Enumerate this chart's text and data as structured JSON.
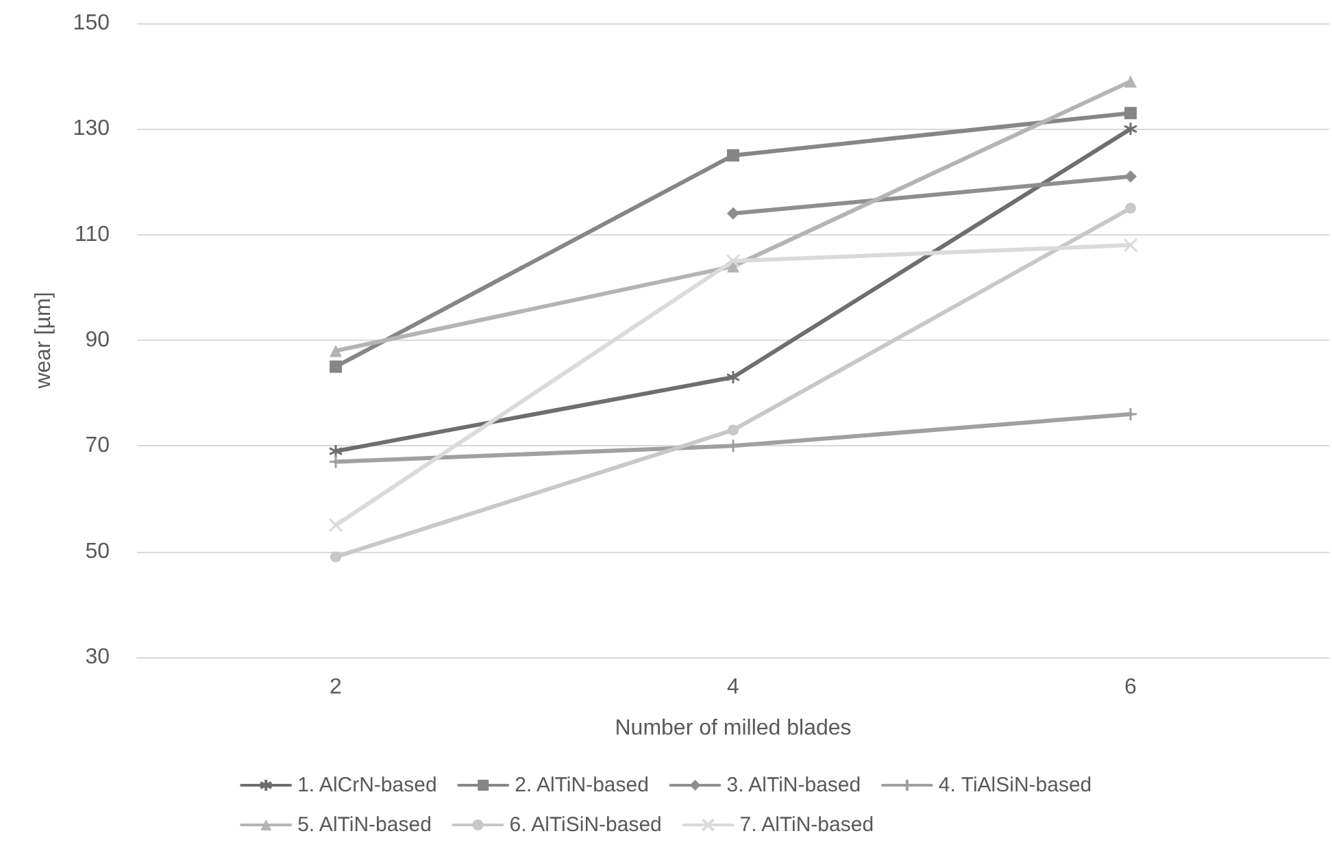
{
  "chart_data": {
    "type": "line",
    "xlabel": "Number of milled blades",
    "ylabel": "wear [µm]",
    "categories": [
      "2",
      "4",
      "6"
    ],
    "ylim": [
      30,
      150
    ],
    "yticks": [
      30,
      50,
      70,
      90,
      110,
      130,
      150
    ],
    "grid": "y",
    "legend": "bottom",
    "line_style": "solid",
    "series": [
      {
        "name": "1. AlCrN-based",
        "color": "#6e6e6e",
        "marker": "cross",
        "values": [
          69,
          83,
          130
        ]
      },
      {
        "name": "2. AlTiN-based",
        "color": "#868686",
        "marker": "square",
        "values": [
          85,
          125,
          133
        ]
      },
      {
        "name": "3. AlTiN-based",
        "color": "#8e8e8e",
        "marker": "diamond",
        "values": [
          null,
          114,
          121
        ]
      },
      {
        "name": "4. TiAlSiN-based",
        "color": "#a0a0a0",
        "marker": "cross",
        "values": [
          67,
          70,
          76
        ]
      },
      {
        "name": "5. AlTiN-based",
        "color": "#b4b4b4",
        "marker": "triangle",
        "values": [
          88,
          104,
          139
        ]
      },
      {
        "name": "6. AlTiSiN-based",
        "color": "#c8c8c8",
        "marker": "circle",
        "values": [
          49,
          73,
          115
        ]
      },
      {
        "name": "7. AlTiN-based",
        "color": "#dadada",
        "marker": "cross",
        "values": [
          55,
          105,
          108
        ]
      }
    ]
  }
}
